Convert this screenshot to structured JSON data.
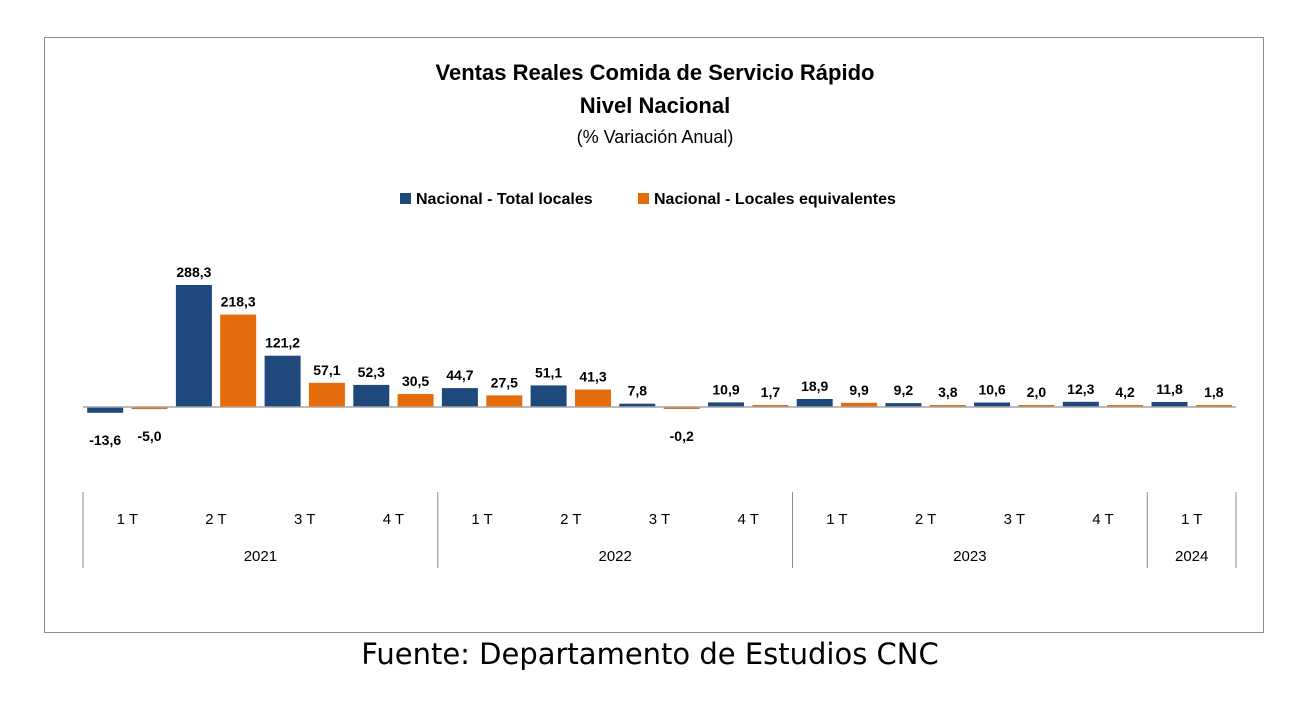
{
  "chart_data": {
    "type": "bar",
    "title": "Ventas Reales Comida de Servicio Rápido",
    "subtitle": "Nivel Nacional",
    "unit_note": "(% Variación Anual)",
    "categories": [
      "1 T",
      "2 T",
      "3 T",
      "4 T",
      "1 T",
      "2 T",
      "3 T",
      "4 T",
      "1 T",
      "2 T",
      "3 T",
      "4 T",
      "1 T"
    ],
    "groups": [
      {
        "label": "2021",
        "count": 4
      },
      {
        "label": "2022",
        "count": 4
      },
      {
        "label": "2023",
        "count": 4
      },
      {
        "label": "2024",
        "count": 1
      }
    ],
    "series": [
      {
        "name": "Nacional - Total locales",
        "color": "#1f497d",
        "values": [
          -13.6,
          288.3,
          121.2,
          52.3,
          44.7,
          51.1,
          7.8,
          10.9,
          18.9,
          9.2,
          10.6,
          12.3,
          11.8
        ],
        "labels": [
          "-13,6",
          "288,3",
          "121,2",
          "52,3",
          "44,7",
          "51,1",
          "7,8",
          "10,9",
          "18,9",
          "9,2",
          "10,6",
          "12,3",
          "11,8"
        ]
      },
      {
        "name": "Nacional - Locales equivalentes",
        "color": "#e46c0a",
        "values": [
          -5.0,
          218.3,
          57.1,
          30.5,
          27.5,
          41.3,
          -0.2,
          1.7,
          9.9,
          3.8,
          2.0,
          4.2,
          1.8
        ],
        "labels": [
          "-5,0",
          "218,3",
          "57,1",
          "30,5",
          "27,5",
          "41,3",
          "-0,2",
          "1,7",
          "9,9",
          "3,8",
          "2,0",
          "4,2",
          "1,8"
        ]
      }
    ],
    "legend_position": "top-center",
    "grid": false
  },
  "source": "Fuente: Departamento de Estudios CNC"
}
